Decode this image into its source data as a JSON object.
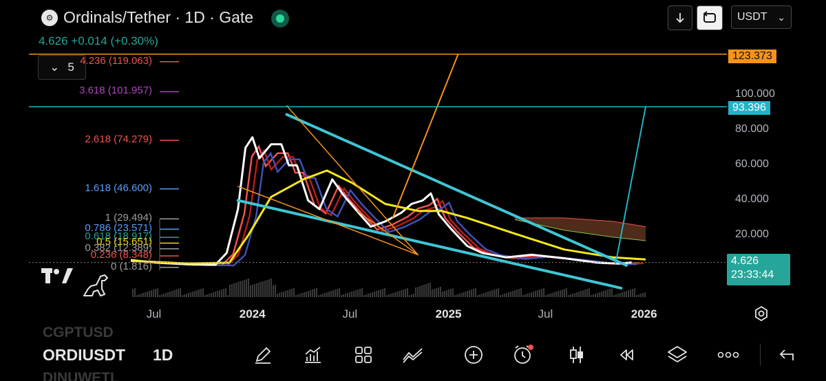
{
  "header": {
    "title": "Ordinals/Tether · 1D · Gate",
    "price_line": "4.626  +0.014 (+0.30%)",
    "collapse_count": "5",
    "currency": "USDT"
  },
  "fib_levels": [
    {
      "text": "4.236 (119.063)",
      "color": "#ef5350"
    },
    {
      "text": "3.618 (101.957)",
      "color": "#ab47bc"
    },
    {
      "text": "2.618 (74.279)",
      "color": "#ef5350"
    },
    {
      "text": "1.618 (46.600)",
      "color": "#5b9cf6"
    },
    {
      "text": "1 (29.494)",
      "color": "#9e9e9e"
    },
    {
      "text": "0.786 (23.571)",
      "color": "#5b9cf6"
    },
    {
      "text": "0.618 (18.917)",
      "color": "#26a69a"
    },
    {
      "text": "0.5 (15.651)",
      "color": "#f5d90a"
    },
    {
      "text": "0.382 (12.389)",
      "color": "#9e9e9e"
    },
    {
      "text": "0.236 (8.348)",
      "color": "#ef5350"
    },
    {
      "text": "0 (1.816)",
      "color": "#9e9e9e"
    }
  ],
  "price_labels": {
    "top": "123.373",
    "mid": "93.396",
    "current": "4.626",
    "countdown": "23:33:44"
  },
  "chart_data": {
    "type": "line",
    "symbol": "ORDIUSDT",
    "timeframe": "1D",
    "y_scale": "linear",
    "ylim": [
      0,
      125
    ],
    "y_ticks": [
      "100.000",
      "80.000",
      "60.000",
      "40.000",
      "20.000"
    ],
    "x_ticks": [
      "Jul",
      "2024",
      "Jul",
      "2025",
      "Jul",
      "2026"
    ],
    "series": [
      {
        "values": [
          [
            "2023-05-15",
            6.0
          ],
          [
            "2023-07-01",
            4.5
          ],
          [
            "2023-09-01",
            3.5
          ],
          [
            "2023-10-20",
            3.3
          ],
          [
            "2023-11-10",
            10.0
          ],
          [
            "2023-12-01",
            35.0
          ],
          [
            "2023-12-15",
            70.0
          ],
          [
            "2023-12-28",
            76.0
          ],
          [
            "2024-01-10",
            64.0
          ],
          [
            "2024-02-01",
            72.0
          ],
          [
            "2024-02-20",
            72.0
          ],
          [
            "2024-03-05",
            60.0
          ],
          [
            "2024-03-20",
            60.0
          ],
          [
            "2024-04-10",
            40.0
          ],
          [
            "2024-05-01",
            35.0
          ],
          [
            "2024-05-25",
            52.0
          ],
          [
            "2024-06-15",
            43.0
          ],
          [
            "2024-07-10",
            34.0
          ],
          [
            "2024-08-05",
            25.0
          ],
          [
            "2024-09-01",
            28.0
          ],
          [
            "2024-10-01",
            33.0
          ],
          [
            "2024-10-20",
            38.0
          ],
          [
            "2024-11-10",
            40.0
          ],
          [
            "2024-11-25",
            44.0
          ],
          [
            "2024-12-10",
            32.0
          ],
          [
            "2025-01-01",
            24.0
          ],
          [
            "2025-02-01",
            14.0
          ],
          [
            "2025-03-01",
            10.0
          ],
          [
            "2025-04-15",
            7.5
          ],
          [
            "2025-06-01",
            9.0
          ],
          [
            "2025-08-01",
            7.0
          ],
          [
            "2025-10-01",
            4.5
          ],
          [
            "2025-11-10",
            4.0
          ],
          [
            "2025-12-05",
            4.626
          ]
        ]
      },
      {
        "values": [
          [
            "2023-05-15",
            5.5
          ],
          [
            "2023-09-01",
            4.0
          ],
          [
            "2023-11-15",
            4.5
          ],
          [
            "2023-12-20",
            20.0
          ],
          [
            "2024-02-01",
            42.0
          ],
          [
            "2024-04-01",
            52.0
          ],
          [
            "2024-05-15",
            57.0
          ],
          [
            "2024-07-01",
            50.0
          ],
          [
            "2024-09-01",
            38.0
          ],
          [
            "2024-11-01",
            34.0
          ],
          [
            "2024-12-15",
            34.0
          ],
          [
            "2025-02-01",
            30.0
          ],
          [
            "2025-05-01",
            21.0
          ],
          [
            "2025-08-01",
            12.0
          ],
          [
            "2025-11-01",
            7.5
          ],
          [
            "2025-12-31",
            6.3
          ]
        ]
      }
    ],
    "legend": "none",
    "grid": false
  },
  "toolbar": {
    "symbol": "ORDIUSDT",
    "symbol_above": "CGPTUSD",
    "symbol_below": "DINUWETL",
    "timeframe": "1D"
  }
}
